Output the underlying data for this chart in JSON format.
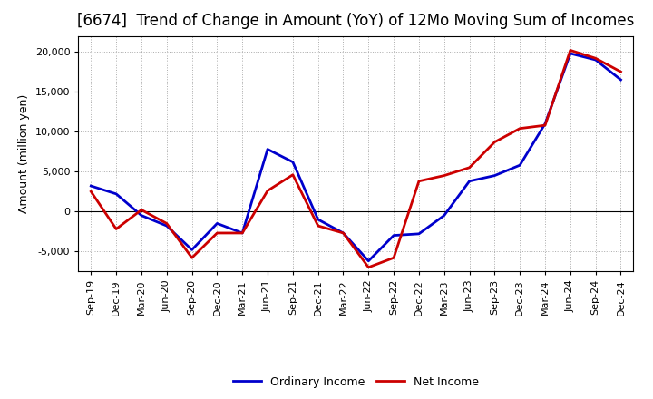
{
  "title": "[6674]  Trend of Change in Amount (YoY) of 12Mo Moving Sum of Incomes",
  "ylabel": "Amount (million yen)",
  "background_color": "#ffffff",
  "grid_color": "#aaaaaa",
  "x_labels": [
    "Sep-19",
    "Dec-19",
    "Mar-20",
    "Jun-20",
    "Sep-20",
    "Dec-20",
    "Mar-21",
    "Jun-21",
    "Sep-21",
    "Dec-21",
    "Mar-22",
    "Jun-22",
    "Sep-22",
    "Dec-22",
    "Mar-23",
    "Jun-23",
    "Sep-23",
    "Dec-23",
    "Mar-24",
    "Jun-24",
    "Sep-24",
    "Dec-24"
  ],
  "ordinary_income": [
    3200,
    2200,
    -500,
    -1800,
    -4800,
    -1500,
    -2700,
    7800,
    6200,
    -1000,
    -2700,
    -6200,
    -3000,
    -2800,
    -500,
    3800,
    4500,
    5800,
    11000,
    19800,
    19000,
    16500
  ],
  "net_income": [
    2500,
    -2200,
    200,
    -1500,
    -5800,
    -2700,
    -2700,
    2600,
    4600,
    -1800,
    -2700,
    -7000,
    -5800,
    3800,
    4500,
    5500,
    8700,
    10400,
    10800,
    20200,
    19200,
    17500
  ],
  "ordinary_color": "#0000cc",
  "net_color": "#cc0000",
  "line_width": 2.0,
  "ylim": [
    -7500,
    22000
  ],
  "yticks": [
    -5000,
    0,
    5000,
    10000,
    15000,
    20000
  ],
  "legend_labels": [
    "Ordinary Income",
    "Net Income"
  ],
  "title_fontsize": 12,
  "axis_fontsize": 9,
  "tick_fontsize": 8
}
